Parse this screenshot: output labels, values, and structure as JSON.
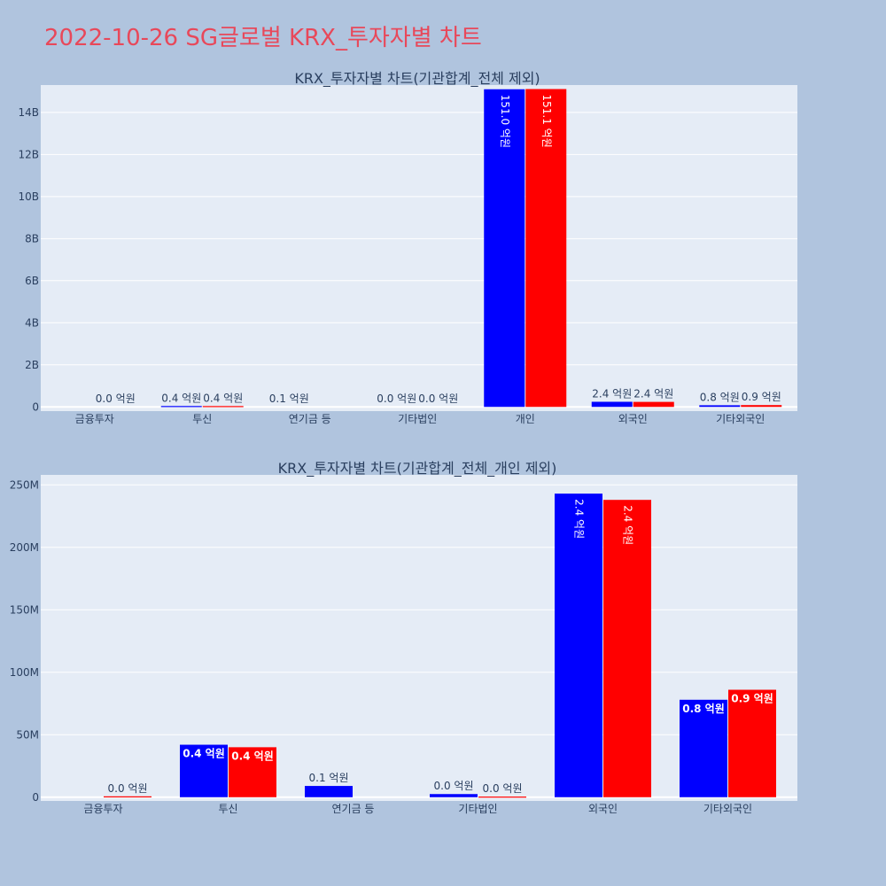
{
  "main_title": "2022-10-26 SG글로벌 KRX_투자자별 차트",
  "colors": {
    "series_a": "#0000ff",
    "series_b": "#ff0000",
    "plot_bg": "#e5ecf6",
    "page_bg": "#b0c4de",
    "title": "#e8485a"
  },
  "chart_data": [
    {
      "type": "bar",
      "title": "KRX_투자자별 차트(기관합계_전체 제외)",
      "categories": [
        "금융투자",
        "투신",
        "연기금 등",
        "기타법인",
        "개인",
        "외국인",
        "기타외국인"
      ],
      "ylim": [
        -200000000,
        15300000000
      ],
      "yticks": [
        0,
        2000000000,
        4000000000,
        6000000000,
        8000000000,
        10000000000,
        12000000000,
        14000000000
      ],
      "ytick_labels": [
        "0",
        "2B",
        "4B",
        "6B",
        "8B",
        "10B",
        "12B",
        "14B"
      ],
      "grid": true,
      "series": [
        {
          "values": [
            0,
            42000000,
            9000000,
            2500000,
            15100000000,
            243000000,
            78000000
          ],
          "labels": [
            "",
            "0.4 억원",
            "0.1 억원",
            "0.0 억원",
            "151.0 억원",
            "2.4 억원",
            "0.8 억원"
          ]
        },
        {
          "values": [
            700000,
            40000000,
            0,
            500000,
            15110000000,
            238000000,
            86000000
          ],
          "labels": [
            "0.0 억원",
            "0.4 억원",
            "",
            "0.0 억원",
            "151.1 억원",
            "2.4 억원",
            "0.9 억원"
          ]
        }
      ]
    },
    {
      "type": "bar",
      "title": "KRX_투자자별 차트(기관합계_전체_개인 제외)",
      "categories": [
        "금융투자",
        "투신",
        "연기금 등",
        "기타법인",
        "외국인",
        "기타외국인"
      ],
      "ylim": [
        -3000000,
        258000000
      ],
      "yticks": [
        0,
        50000000,
        100000000,
        150000000,
        200000000,
        250000000
      ],
      "ytick_labels": [
        "0",
        "50M",
        "100M",
        "150M",
        "200M",
        "250M"
      ],
      "grid": true,
      "series": [
        {
          "values": [
            0,
            42000000,
            9000000,
            2500000,
            243000000,
            78000000
          ],
          "labels": [
            "",
            "0.4 억원",
            "0.1 억원",
            "0.0 억원",
            "2.4 억원",
            "0.8 억원"
          ]
        },
        {
          "values": [
            700000,
            40000000,
            0,
            500000,
            238000000,
            86000000
          ],
          "labels": [
            "0.0 억원",
            "0.4 억원",
            "",
            "0.0 억원",
            "2.4 억원",
            "0.9 억원"
          ]
        }
      ]
    }
  ]
}
